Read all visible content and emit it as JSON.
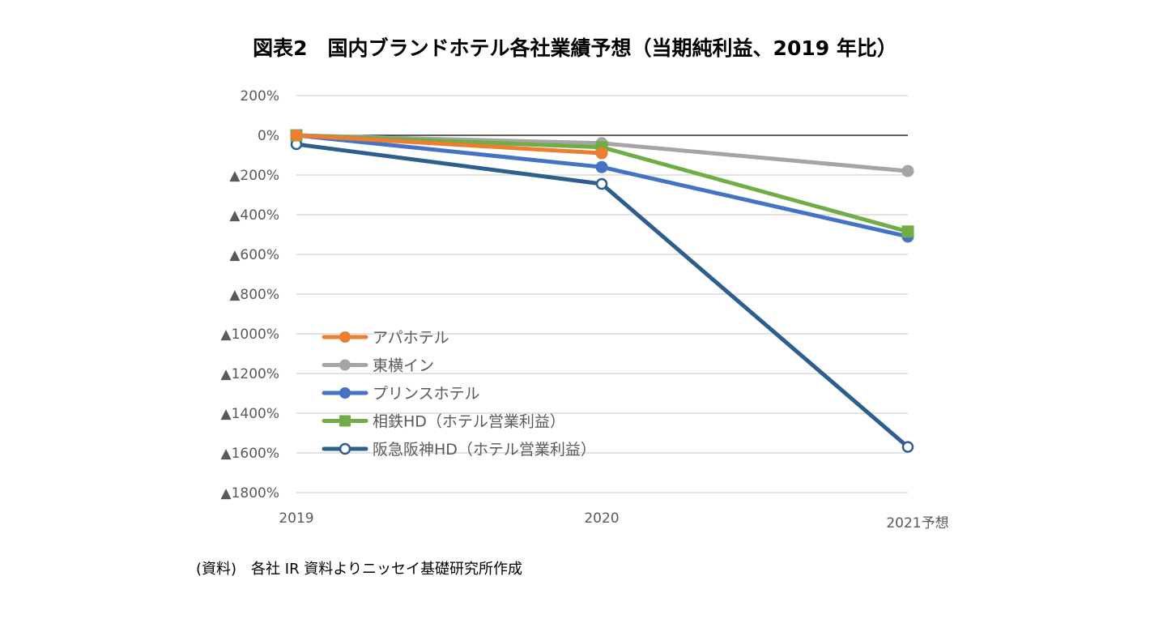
{
  "title": "図表2　国内ブランドホテル各社業績予想（当期純利益、2019 年比）",
  "source": "(資料)　各社 IR 資料よりニッセイ基礎研究所作成",
  "chart_data": {
    "type": "line",
    "title": "図表2　国内ブランドホテル各社業績予想（当期純利益、2019 年比）",
    "xlabel": "",
    "ylabel": "",
    "categories": [
      "2019",
      "2020",
      "2021予想"
    ],
    "ylim": [
      -1800,
      200
    ],
    "yticks": [
      200,
      0,
      -200,
      -400,
      -600,
      -800,
      -1000,
      -1200,
      -1400,
      -1600,
      -1800
    ],
    "ytick_labels": [
      "200%",
      "0%",
      "▲200%",
      "▲400%",
      "▲600%",
      "▲800%",
      "▲1000%",
      "▲1200%",
      "▲1400%",
      "▲1600%",
      "▲1800%"
    ],
    "grid": true,
    "legend_position": "bottom-left inside",
    "series": [
      {
        "name": "アパホテル",
        "color": "#ED7D31",
        "marker": "circle",
        "values": [
          0,
          -90,
          null
        ]
      },
      {
        "name": "東横イン",
        "color": "#A5A5A5",
        "marker": "circle",
        "values": [
          0,
          -40,
          -180
        ]
      },
      {
        "name": "プリンスホテル",
        "color": "#4472C4",
        "marker": "circle",
        "values": [
          0,
          -160,
          -510
        ]
      },
      {
        "name": "相鉄HD（ホテル営業利益）",
        "color": "#70AD47",
        "marker": "square",
        "values": [
          0,
          -60,
          -485
        ]
      },
      {
        "name": "阪急阪神HD（ホテル営業利益）",
        "color": "#2E5E8E",
        "marker": "open-circle",
        "values": [
          -45,
          -245,
          -1570
        ]
      }
    ]
  }
}
